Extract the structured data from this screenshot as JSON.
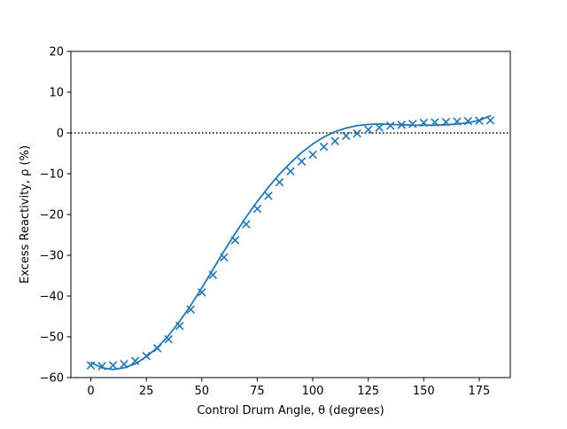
{
  "chart_data": {
    "type": "scatter",
    "title": "",
    "xlabel": "Control Drum Angle, θ (degrees)",
    "ylabel": "Excess Reactivity, ρ (%)",
    "xlim": [
      -9,
      189
    ],
    "ylim": [
      -60,
      20
    ],
    "xticks": [
      0,
      25,
      50,
      75,
      100,
      125,
      150,
      175
    ],
    "yticks": [
      -60,
      -50,
      -40,
      -30,
      -20,
      -10,
      0,
      10,
      20
    ],
    "xtick_labels": [
      "0",
      "25",
      "50",
      "75",
      "100",
      "125",
      "150",
      "175"
    ],
    "ytick_labels": [
      "−60",
      "−50",
      "−40",
      "−30",
      "−20",
      "−10",
      "0",
      "10",
      "20"
    ],
    "grid": false,
    "reference_line": {
      "y": 0,
      "style": "dotted",
      "color": "#000000"
    },
    "series": [
      {
        "kind": "scatter",
        "marker": "x",
        "color": "#1f77b4",
        "x": [
          0,
          5,
          10,
          15,
          20,
          25,
          30,
          35,
          40,
          45,
          50,
          55,
          60,
          65,
          70,
          75,
          80,
          85,
          90,
          95,
          100,
          105,
          110,
          115,
          120,
          125,
          130,
          135,
          140,
          145,
          150,
          155,
          160,
          165,
          170,
          175,
          180
        ],
        "y": [
          -57.0,
          -57.2,
          -57.0,
          -56.7,
          -55.9,
          -54.7,
          -52.8,
          -50.6,
          -47.3,
          -43.3,
          -39.1,
          -34.8,
          -30.5,
          -26.3,
          -22.4,
          -18.6,
          -15.4,
          -12.1,
          -9.4,
          -7.0,
          -5.3,
          -3.4,
          -2.0,
          -0.7,
          -0.1,
          0.8,
          1.3,
          1.8,
          2.0,
          2.2,
          2.5,
          2.6,
          2.7,
          2.8,
          2.9,
          3.0,
          3.1
        ]
      },
      {
        "kind": "line",
        "color": "#1f77b4",
        "x": [
          0,
          5,
          10,
          15,
          20,
          25,
          30,
          35,
          40,
          45,
          50,
          55,
          60,
          65,
          70,
          75,
          80,
          85,
          90,
          95,
          100,
          105,
          110,
          115,
          120,
          125,
          130,
          135,
          140,
          145,
          150,
          155,
          160,
          165,
          170,
          175,
          180
        ],
        "y": [
          -56.3,
          -57.6,
          -58.0,
          -57.6,
          -56.6,
          -54.9,
          -52.6,
          -49.7,
          -46.2,
          -42.3,
          -38.0,
          -33.5,
          -29.0,
          -24.7,
          -20.6,
          -16.8,
          -13.3,
          -10.1,
          -7.3,
          -4.8,
          -2.7,
          -1.0,
          0.3,
          1.2,
          1.8,
          2.1,
          2.2,
          2.1,
          2.0,
          1.9,
          1.9,
          1.9,
          2.0,
          2.2,
          2.5,
          3.1,
          4.2
        ]
      }
    ]
  }
}
